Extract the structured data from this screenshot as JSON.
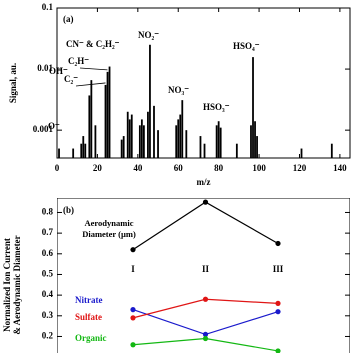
{
  "chart_data": [
    {
      "type": "stem",
      "panel_label": "(a)",
      "y_label": "Signal, au.",
      "x_label": "m/z",
      "color": "#000000",
      "log_scale": true,
      "x": [
        1,
        8,
        12,
        13,
        14,
        16,
        17,
        19,
        24,
        25,
        26,
        32,
        33,
        35,
        36,
        37,
        41,
        42,
        43,
        45,
        46,
        48,
        50,
        59,
        60,
        61,
        62,
        64,
        71,
        73,
        79,
        80,
        81,
        89,
        96,
        97,
        98,
        99,
        121,
        136
      ],
      "values": [
        0.0005,
        0.0005,
        0.0006,
        0.0008,
        0.0006,
        0.0037,
        0.0066,
        0.0012,
        0.0055,
        0.009,
        0.011,
        0.0007,
        0.0008,
        0.002,
        0.0015,
        0.0018,
        0.0012,
        0.0015,
        0.0012,
        0.002,
        0.025,
        0.0025,
        0.001,
        0.0012,
        0.0015,
        0.0018,
        0.0031,
        0.001,
        0.0008,
        0.0006,
        0.0012,
        0.0014,
        0.0011,
        0.0006,
        0.0012,
        0.0157,
        0.0014,
        0.0008,
        0.0005,
        0.0006
      ],
      "xlim": [
        0,
        145
      ],
      "xticks": [
        0,
        20,
        40,
        60,
        80,
        100,
        120,
        140
      ],
      "ylim": [
        0.00035,
        0.1
      ],
      "yticks": [
        0.001,
        0.01,
        0.1
      ],
      "annotations": [
        {
          "text": "O⁻",
          "x": 16
        },
        {
          "text": "OH⁻",
          "x": 17
        },
        {
          "text": "C₂⁻",
          "x": 24
        },
        {
          "text": "C₂H⁻",
          "x": 25
        },
        {
          "text": "CN⁻ & C₂H₂⁻",
          "x": 26
        },
        {
          "text": "NO₂⁻",
          "x": 46
        },
        {
          "text": "NO₃⁻",
          "x": 62
        },
        {
          "text": "HSO₃⁻",
          "x": 80
        },
        {
          "text": "HSO₄⁻",
          "x": 97
        }
      ]
    },
    {
      "type": "line",
      "panel_label": "(b)",
      "y_label": [
        "Normalized Ion Current",
        "& Aerodynamic Diameter"
      ],
      "categories": [
        "I",
        "II",
        "III"
      ],
      "ylim": [
        0.12,
        0.87
      ],
      "yticks": [
        0.2,
        0.3,
        0.4,
        0.5,
        0.6,
        0.7,
        0.8
      ],
      "series": [
        {
          "name": "Aerodynamic Diameter (µm)",
          "color": "#000000",
          "values": [
            0.62,
            0.85,
            0.65
          ]
        },
        {
          "name": "Nitrate",
          "color": "#1a1acc",
          "values": [
            0.33,
            0.21,
            0.32
          ]
        },
        {
          "name": "Sulfate",
          "color": "#e01515",
          "values": [
            0.29,
            0.38,
            0.36
          ]
        },
        {
          "name": "Organic",
          "color": "#13b813",
          "values": [
            0.16,
            0.19,
            0.13
          ]
        }
      ]
    }
  ]
}
